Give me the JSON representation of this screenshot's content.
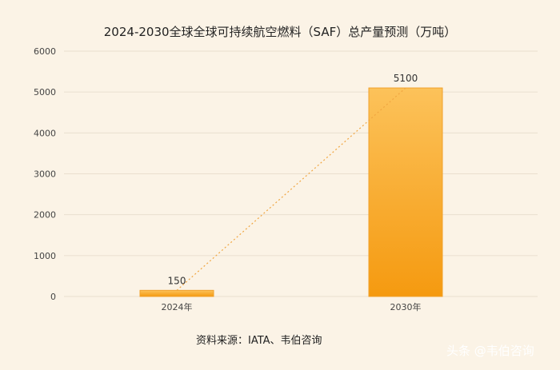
{
  "chart_data": {
    "type": "bar",
    "title": "2024-2030全球全球可持续航空燃料（SAF）总产量预测（万吨）",
    "categories": [
      "2024年",
      "2030年"
    ],
    "values": [
      150,
      5100
    ],
    "ylim": [
      0,
      6000
    ],
    "yticks": [
      0,
      1000,
      2000,
      3000,
      4000,
      5000,
      6000
    ],
    "grid": true,
    "xlabel": "",
    "ylabel": "",
    "trendline": true,
    "colors": {
      "bar_top": "#fcc25a",
      "bar_bottom": "#f59a10",
      "trend": "#f0a540",
      "grid": "#e9dfcf"
    }
  },
  "source": "资料来源：IATA、韦伯咨询",
  "watermark": "头条 @韦伯咨询"
}
